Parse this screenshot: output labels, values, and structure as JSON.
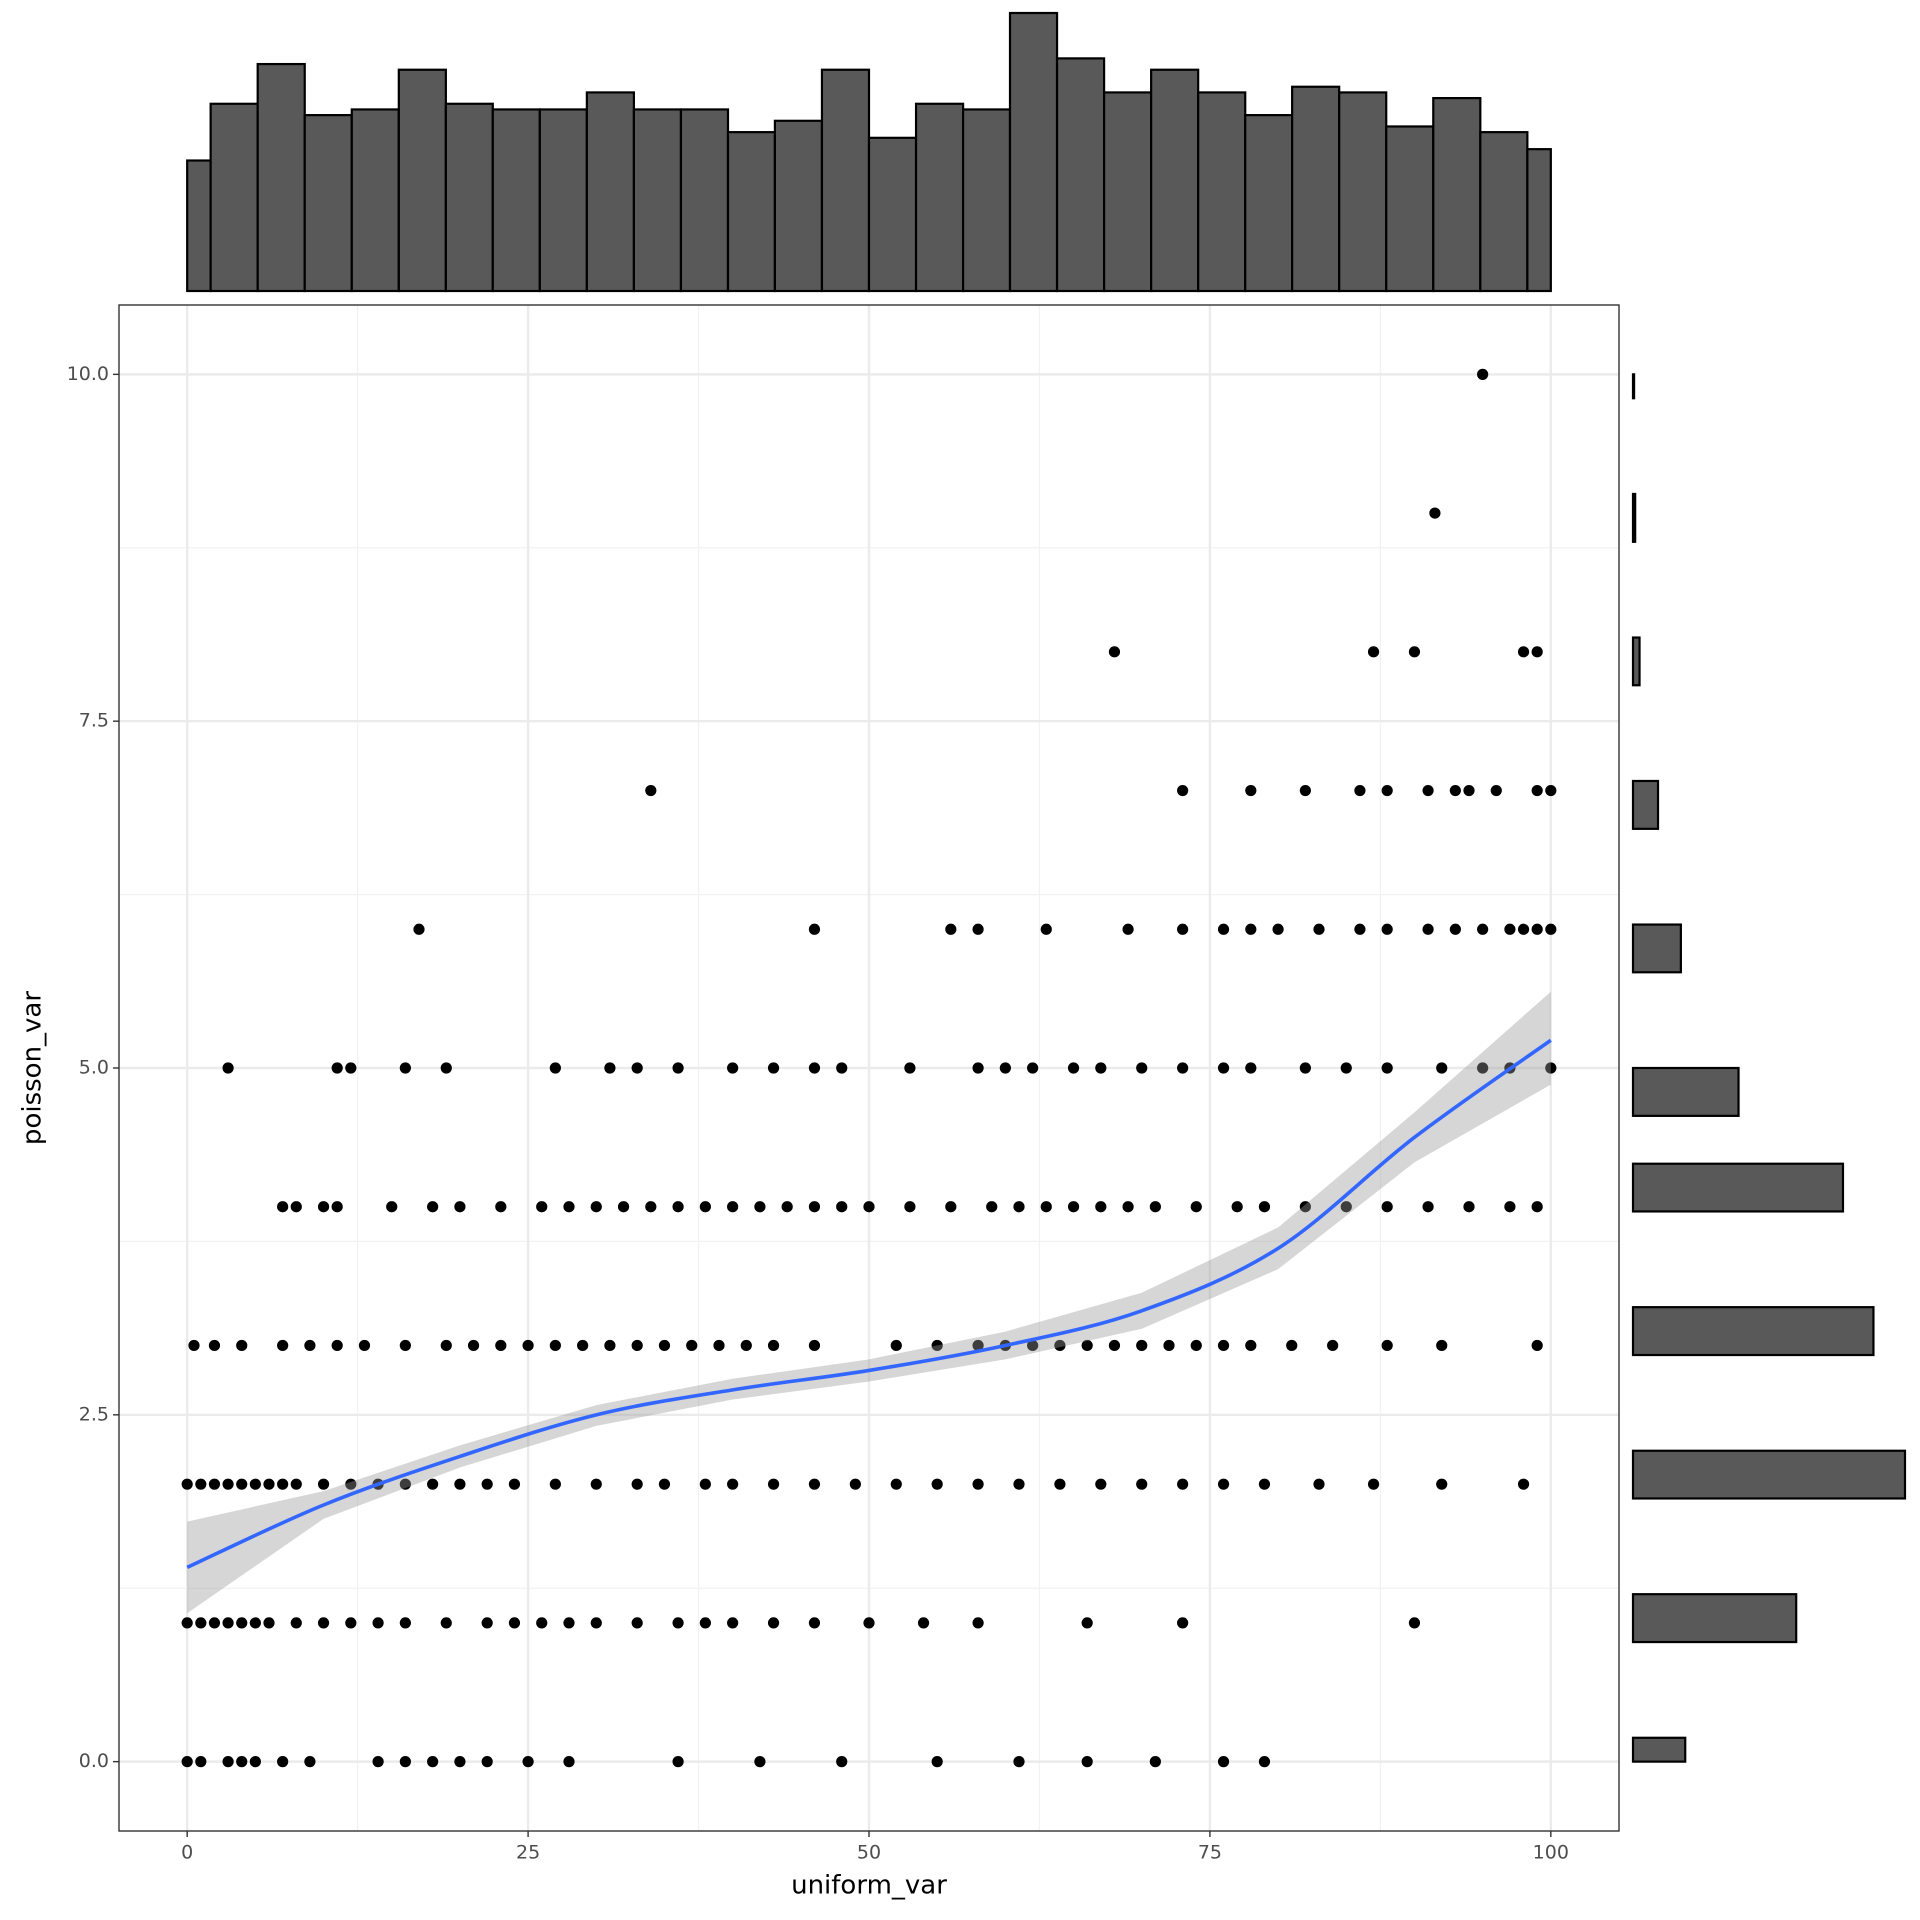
{
  "chart_data": {
    "type": "scatter",
    "x_label": "uniform_var",
    "y_label": "poisson_var",
    "xlim": [
      -5,
      105
    ],
    "ylim": [
      -0.5,
      10.5
    ],
    "xticks": [
      0,
      25,
      50,
      75,
      100
    ],
    "yticks": [
      {
        "value": 0,
        "label": "0.0"
      },
      2.5,
      {
        "value": 5,
        "label": "5.0"
      },
      7.5,
      {
        "value": 10,
        "label": "10.0"
      }
    ],
    "minor_xticks": [
      12.5,
      37.5,
      62.5,
      87.5
    ],
    "minor_yticks": [
      1.25,
      3.75,
      6.25,
      8.75
    ],
    "grid": true,
    "color": "#000000",
    "x": [
      0,
      1,
      3,
      4,
      5,
      7,
      9,
      14,
      16,
      18,
      20,
      22,
      25,
      28,
      36,
      42,
      48,
      55,
      61,
      66,
      71,
      76,
      79,
      0,
      1,
      2,
      3,
      4,
      5,
      6,
      8,
      10,
      12,
      14,
      16,
      19,
      22,
      24,
      26,
      28,
      30,
      33,
      36,
      38,
      40,
      43,
      46,
      50,
      54,
      58,
      66,
      73,
      90,
      0,
      1,
      2,
      3,
      4,
      5,
      6,
      7,
      8,
      10,
      12,
      14,
      16,
      18,
      20,
      22,
      24,
      27,
      30,
      33,
      35,
      38,
      40,
      43,
      46,
      49,
      52,
      55,
      58,
      61,
      64,
      67,
      70,
      73,
      76,
      79,
      83,
      87,
      92,
      98,
      0.5,
      2,
      4,
      7,
      9,
      11,
      13,
      16,
      19,
      21,
      23,
      25,
      27,
      29,
      31,
      33,
      35,
      37,
      39,
      41,
      43,
      46,
      52,
      55,
      58,
      60,
      62,
      64,
      66,
      68,
      70,
      72,
      74,
      76,
      78,
      81,
      84,
      88,
      92,
      99,
      7,
      8,
      10,
      11,
      15,
      18,
      20,
      23,
      26,
      28,
      30,
      32,
      34,
      36,
      38,
      40,
      42,
      44,
      46,
      48,
      50,
      53,
      56,
      59,
      61,
      63,
      65,
      67,
      69,
      71,
      74,
      77,
      79,
      82,
      85,
      88,
      91,
      94,
      97,
      99,
      3,
      11,
      12,
      16,
      19,
      27,
      31,
      33,
      36,
      40,
      43,
      46,
      48,
      53,
      58,
      60,
      62,
      65,
      67,
      70,
      73,
      76,
      78,
      82,
      85,
      88,
      92,
      95,
      97,
      100,
      17,
      46,
      56,
      58,
      63,
      69,
      73,
      76,
      78,
      80,
      83,
      86,
      88,
      91,
      93,
      95,
      97,
      98,
      99,
      100,
      34,
      73,
      78,
      82,
      86,
      88,
      91,
      93,
      94,
      96,
      99,
      100,
      68,
      87,
      90,
      98,
      99,
      91.5,
      95
    ],
    "y": [
      0,
      0,
      0,
      0,
      0,
      0,
      0,
      0,
      0,
      0,
      0,
      0,
      0,
      0,
      0,
      0,
      0,
      0,
      0,
      0,
      0,
      0,
      0,
      1,
      1,
      1,
      1,
      1,
      1,
      1,
      1,
      1,
      1,
      1,
      1,
      1,
      1,
      1,
      1,
      1,
      1,
      1,
      1,
      1,
      1,
      1,
      1,
      1,
      1,
      1,
      1,
      1,
      1,
      2,
      2,
      2,
      2,
      2,
      2,
      2,
      2,
      2,
      2,
      2,
      2,
      2,
      2,
      2,
      2,
      2,
      2,
      2,
      2,
      2,
      2,
      2,
      2,
      2,
      2,
      2,
      2,
      2,
      2,
      2,
      2,
      2,
      2,
      2,
      2,
      2,
      2,
      2,
      2,
      3,
      3,
      3,
      3,
      3,
      3,
      3,
      3,
      3,
      3,
      3,
      3,
      3,
      3,
      3,
      3,
      3,
      3,
      3,
      3,
      3,
      3,
      3,
      3,
      3,
      3,
      3,
      3,
      3,
      3,
      3,
      3,
      3,
      3,
      3,
      3,
      3,
      3,
      3,
      3,
      4,
      4,
      4,
      4,
      4,
      4,
      4,
      4,
      4,
      4,
      4,
      4,
      4,
      4,
      4,
      4,
      4,
      4,
      4,
      4,
      4,
      4,
      4,
      4,
      4,
      4,
      4,
      4,
      4,
      4,
      4,
      4,
      4,
      4,
      4,
      4,
      4,
      4,
      4,
      4,
      5,
      5,
      5,
      5,
      5,
      5,
      5,
      5,
      5,
      5,
      5,
      5,
      5,
      5,
      5,
      5,
      5,
      5,
      5,
      5,
      5,
      5,
      5,
      5,
      5,
      5,
      5,
      5,
      5,
      5,
      6,
      6,
      6,
      6,
      6,
      6,
      6,
      6,
      6,
      6,
      6,
      6,
      6,
      6,
      6,
      6,
      6,
      6,
      6,
      6,
      7,
      7,
      7,
      7,
      7,
      7,
      7,
      7,
      7,
      7,
      7,
      7,
      8,
      8,
      8,
      8,
      8,
      9,
      10
    ],
    "smooth": {
      "color": "#3366FF",
      "band_color": "#999999",
      "x": [
        0,
        10,
        20,
        30,
        40,
        50,
        60,
        70,
        80,
        90,
        100
      ],
      "y": [
        1.4,
        1.85,
        2.2,
        2.5,
        2.68,
        2.82,
        3.0,
        3.25,
        3.7,
        4.5,
        5.2
      ],
      "lower": [
        1.07,
        1.75,
        2.12,
        2.42,
        2.61,
        2.74,
        2.9,
        3.12,
        3.55,
        4.32,
        4.88
      ],
      "upper": [
        1.73,
        1.95,
        2.28,
        2.57,
        2.76,
        2.9,
        3.1,
        3.38,
        3.85,
        4.68,
        5.55
      ]
    },
    "x_histogram": {
      "color": "#595959",
      "bins": [
        0,
        1.72,
        5.17,
        8.62,
        12.07,
        15.52,
        18.97,
        22.41,
        25.86,
        29.31,
        32.76,
        36.21,
        39.66,
        43.1,
        46.55,
        50.0,
        53.45,
        56.9,
        60.34,
        63.79,
        67.24,
        70.69,
        74.14,
        77.59,
        81.03,
        84.48,
        87.93,
        91.38,
        94.83,
        98.28,
        100
      ],
      "counts": [
        23,
        33,
        40,
        31,
        32,
        39,
        33,
        32,
        32,
        35,
        32,
        32,
        28,
        30,
        39,
        27,
        33,
        32,
        49,
        41,
        35,
        39,
        35,
        31,
        36,
        35,
        29,
        34,
        28,
        25
      ]
    },
    "y_histogram": {
      "color": "#595959",
      "bins": [
        0,
        0.172,
        0.517,
        0.862,
        1.207,
        1.552,
        1.897,
        2.241,
        2.586,
        2.931,
        3.276,
        3.621,
        3.966,
        4.31,
        4.655,
        5.0,
        5.345,
        5.69,
        6.034,
        6.379,
        6.724,
        7.069,
        7.414,
        7.759,
        8.103,
        8.448,
        8.793,
        9.138,
        9.483,
        9.828,
        10
      ],
      "counts": [
        48,
        0,
        0,
        150,
        0,
        0,
        250,
        0,
        0,
        221,
        0,
        0,
        193,
        0,
        97,
        0,
        0,
        44,
        0,
        0,
        23,
        0,
        0,
        6,
        0,
        0,
        2,
        0,
        0,
        1
      ]
    }
  }
}
